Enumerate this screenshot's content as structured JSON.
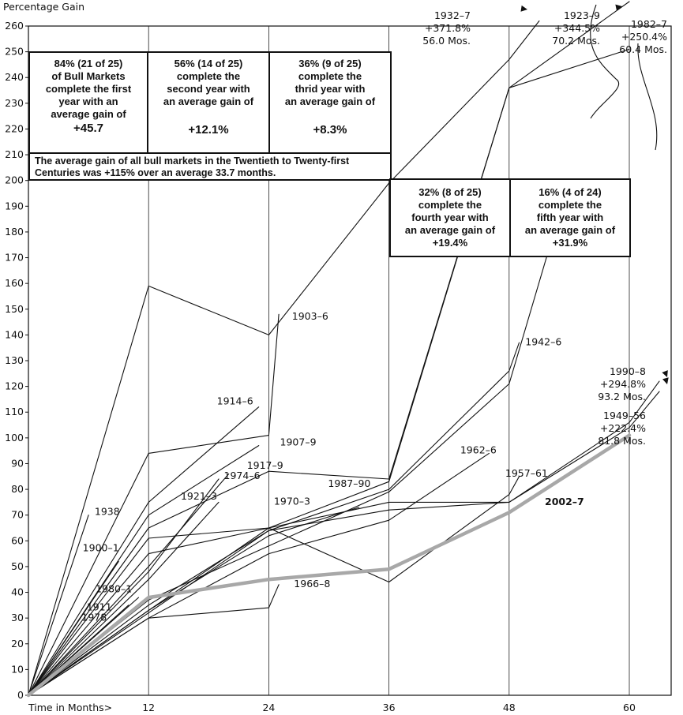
{
  "chart_data": {
    "type": "line",
    "ylabel": "Percentage Gain",
    "xlabel": "Time in Months>",
    "xlim": [
      0,
      63
    ],
    "ylim": [
      0,
      260
    ],
    "x_ticks": [
      12,
      24,
      36,
      48,
      60
    ],
    "y_ticks": [
      0,
      10,
      20,
      30,
      40,
      50,
      60,
      70,
      80,
      90,
      100,
      110,
      120,
      130,
      140,
      150,
      160,
      170,
      180,
      190,
      200,
      210,
      220,
      230,
      240,
      250,
      260
    ],
    "grid": "vertical",
    "highlight_series": "2002–7",
    "series": [
      {
        "name": "1932–7",
        "points": [
          [
            0,
            0
          ],
          [
            12,
            159
          ],
          [
            24,
            140
          ],
          [
            36,
            199
          ],
          [
            48,
            247
          ],
          [
            51,
            262
          ]
        ]
      },
      {
        "name": "1923–9",
        "points": [
          [
            0,
            0
          ],
          [
            12,
            65
          ],
          [
            24,
            87
          ],
          [
            36,
            84
          ],
          [
            48,
            236
          ],
          [
            60,
            270
          ]
        ]
      },
      {
        "name": "1982–7",
        "points": [
          [
            0,
            0
          ],
          [
            12,
            55
          ],
          [
            24,
            65
          ],
          [
            36,
            83
          ],
          [
            48,
            236
          ],
          [
            60,
            251
          ]
        ]
      },
      {
        "name": "1903–6",
        "points": [
          [
            0,
            0
          ],
          [
            12,
            94
          ],
          [
            24,
            101
          ],
          [
            25,
            148
          ]
        ]
      },
      {
        "name": "1914–6",
        "points": [
          [
            0,
            0
          ],
          [
            12,
            75
          ],
          [
            23,
            112
          ]
        ]
      },
      {
        "name": "1907–9",
        "points": [
          [
            0,
            0
          ],
          [
            12,
            70
          ],
          [
            23,
            97
          ]
        ]
      },
      {
        "name": "1917–9",
        "points": [
          [
            0,
            0
          ],
          [
            12,
            50
          ],
          [
            20,
            86
          ]
        ]
      },
      {
        "name": "1974–6",
        "points": [
          [
            0,
            0
          ],
          [
            12,
            48
          ],
          [
            19,
            84
          ]
        ]
      },
      {
        "name": "1921–3",
        "points": [
          [
            0,
            0
          ],
          [
            12,
            45
          ],
          [
            19,
            75
          ]
        ]
      },
      {
        "name": "1987–90",
        "points": [
          [
            0,
            0
          ],
          [
            12,
            35
          ],
          [
            24,
            64
          ],
          [
            36,
            80
          ],
          [
            48,
            126
          ],
          [
            49,
            137
          ]
        ]
      },
      {
        "name": "1942–6",
        "points": [
          [
            0,
            0
          ],
          [
            12,
            37
          ],
          [
            24,
            58
          ],
          [
            36,
            79
          ],
          [
            48,
            121
          ],
          [
            54,
            200
          ]
        ]
      },
      {
        "name": "1970–3",
        "points": [
          [
            0,
            0
          ],
          [
            12,
            33
          ],
          [
            24,
            62
          ],
          [
            33,
            73
          ]
        ]
      },
      {
        "name": "1962–6",
        "points": [
          [
            0,
            0
          ],
          [
            12,
            30
          ],
          [
            24,
            55
          ],
          [
            36,
            68
          ],
          [
            46,
            94
          ]
        ]
      },
      {
        "name": "1990–8",
        "points": [
          [
            0,
            0
          ],
          [
            12,
            32
          ],
          [
            24,
            64
          ],
          [
            36,
            72
          ],
          [
            48,
            75
          ],
          [
            60,
            104
          ],
          [
            63,
            118
          ]
        ]
      },
      {
        "name": "1949–56",
        "points": [
          [
            0,
            0
          ],
          [
            12,
            33
          ],
          [
            24,
            65
          ],
          [
            36,
            75
          ],
          [
            48,
            75
          ],
          [
            60,
            106
          ],
          [
            63,
            122
          ]
        ]
      },
      {
        "name": "1957–61",
        "points": [
          [
            0,
            0
          ],
          [
            12,
            61
          ],
          [
            24,
            65
          ],
          [
            36,
            44
          ],
          [
            48,
            78
          ],
          [
            49,
            85
          ]
        ]
      },
      {
        "name": "1966–8",
        "points": [
          [
            0,
            0
          ],
          [
            12,
            30
          ],
          [
            24,
            34
          ],
          [
            25,
            43
          ]
        ]
      },
      {
        "name": "1938",
        "points": [
          [
            0,
            0
          ],
          [
            6,
            70
          ]
        ]
      },
      {
        "name": "1900–1",
        "points": [
          [
            0,
            0
          ],
          [
            9,
            52
          ]
        ]
      },
      {
        "name": "1980–1",
        "points": [
          [
            0,
            0
          ],
          [
            11,
            38
          ]
        ]
      },
      {
        "name": "1911",
        "points": [
          [
            0,
            0
          ],
          [
            10,
            35
          ]
        ]
      },
      {
        "name": "1978",
        "points": [
          [
            0,
            0
          ],
          [
            10,
            31
          ]
        ]
      },
      {
        "name": "2002–7",
        "points": [
          [
            0,
            0
          ],
          [
            12,
            38
          ],
          [
            24,
            45
          ],
          [
            36,
            49
          ],
          [
            48,
            71
          ],
          [
            60,
            101
          ]
        ]
      }
    ],
    "line_labels": [
      {
        "text": "1903–6",
        "x": 26,
        "y": 146
      },
      {
        "text": "1914–6",
        "x": 18.5,
        "y": 113
      },
      {
        "text": "1907–9",
        "x": 24.8,
        "y": 97
      },
      {
        "text": "1917–9",
        "x": 21.5,
        "y": 88
      },
      {
        "text": "1974–6",
        "x": 19.2,
        "y": 84
      },
      {
        "text": "1921–3",
        "x": 14.9,
        "y": 76
      },
      {
        "text": "1987–90",
        "x": 29.6,
        "y": 81
      },
      {
        "text": "1970–3",
        "x": 24.2,
        "y": 74
      },
      {
        "text": "1962–6",
        "x": 42.8,
        "y": 94
      },
      {
        "text": "1942–6",
        "x": 49.3,
        "y": 136
      },
      {
        "text": "1957–61",
        "x": 47.3,
        "y": 85
      },
      {
        "text": "1966–8",
        "x": 26.2,
        "y": 42
      },
      {
        "text": "1938",
        "x": 6.3,
        "y": 70
      },
      {
        "text": "1900–1",
        "x": 5.1,
        "y": 56
      },
      {
        "text": "1980–1",
        "x": 6.4,
        "y": 40
      },
      {
        "text": "1911",
        "x": 5.5,
        "y": 33
      },
      {
        "text": "1978",
        "x": 5,
        "y": 29
      }
    ],
    "end_labels": [
      {
        "series": "1932–7",
        "lines": [
          "1932–7",
          "+371.8%",
          "56.0 Mos."
        ]
      },
      {
        "series": "1923–9",
        "lines": [
          "1923–9",
          "+344.5%",
          "70.2 Mos."
        ]
      },
      {
        "series": "1982–7",
        "lines": [
          "1982–7",
          "+250.4%",
          "60.4 Mos."
        ]
      },
      {
        "series": "1990–8",
        "lines": [
          "1990–8",
          "+294.8%",
          "93.2 Mos."
        ]
      },
      {
        "series": "1949–56",
        "lines": [
          "1949–56",
          "+222.4%",
          "81.8 Mos."
        ]
      }
    ],
    "highlight_label": "2002–7"
  },
  "summary_boxes": [
    {
      "lines": [
        "84% (21 of 25)",
        "of Bull Markets",
        "complete the first",
        "year with an",
        "average gain of"
      ],
      "value": "+45.7"
    },
    {
      "lines": [
        "56% (14 of 25)",
        "complete the",
        "second year with",
        "an average gain of"
      ],
      "value": "+12.1%"
    },
    {
      "lines": [
        "36% (9 of 25)",
        "complete the",
        "thrid year with",
        "an average gain of"
      ],
      "value": "+8.3%"
    },
    {
      "lines": [
        "32% (8 of 25)",
        "complete the",
        "fourth year with",
        "an average gain of"
      ],
      "value": "+19.4%"
    },
    {
      "lines": [
        "16% (4 of 24)",
        "complete the",
        "fifth year with",
        "an average gain of"
      ],
      "value": "+31.9%"
    }
  ],
  "summary_note": "The average gain of all bull markets in the Twentieth to Twenty-first Centuries was +115% over an average 33.7 months.",
  "colors": {
    "lines": "#111111",
    "highlight": "#a8a8a8",
    "grid": "#222222"
  }
}
